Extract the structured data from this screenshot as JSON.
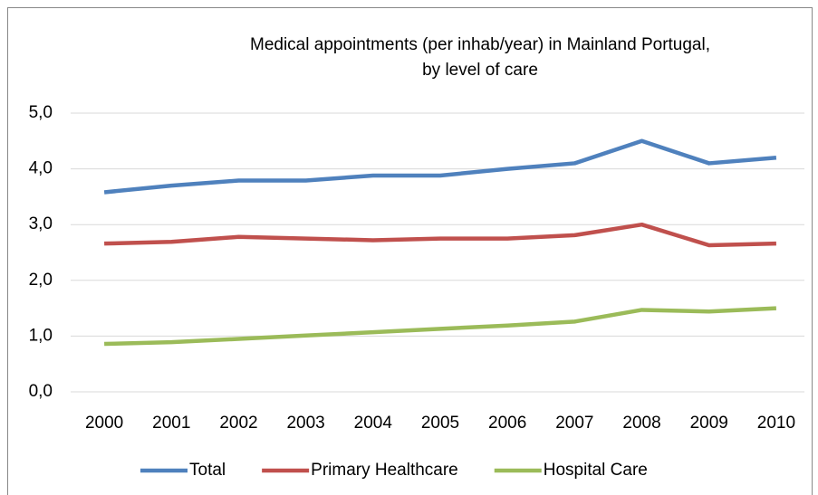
{
  "chart_data": {
    "type": "line",
    "title": "Medical appointments (per inhab/year) in Mainland Portugal, by level of care",
    "categories": [
      "2000",
      "2001",
      "2002",
      "2003",
      "2004",
      "2005",
      "2006",
      "2007",
      "2008",
      "2009",
      "2010"
    ],
    "series": [
      {
        "name": "Total",
        "color": "#4f81bd",
        "values": [
          3.58,
          3.7,
          3.79,
          3.79,
          3.88,
          3.88,
          4.0,
          4.1,
          4.5,
          4.1,
          4.2
        ]
      },
      {
        "name": "Primary Healthcare",
        "color": "#c0504d",
        "values": [
          2.66,
          2.69,
          2.78,
          2.75,
          2.72,
          2.75,
          2.75,
          2.81,
          3.0,
          2.63,
          2.66
        ]
      },
      {
        "name": "Hospital Care",
        "color": "#9bbb59",
        "values": [
          0.86,
          0.89,
          0.95,
          1.01,
          1.07,
          1.13,
          1.19,
          1.26,
          1.47,
          1.44,
          1.5
        ]
      }
    ],
    "ylim": [
      0,
      5
    ],
    "yticks": [
      {
        "value": 0,
        "label": "0,0"
      },
      {
        "value": 1,
        "label": "1,0"
      },
      {
        "value": 2,
        "label": "2,0"
      },
      {
        "value": 3,
        "label": "3,0"
      },
      {
        "value": 4,
        "label": "4,0"
      },
      {
        "value": 5,
        "label": "5,0"
      }
    ],
    "grid": true,
    "legend": "bottom"
  }
}
